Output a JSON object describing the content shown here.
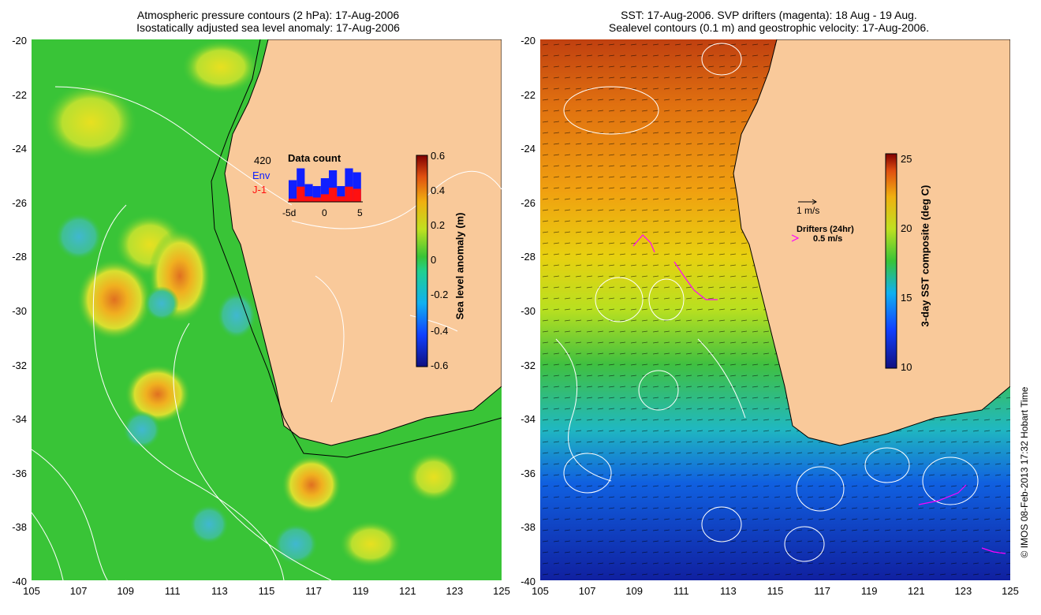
{
  "left_panel": {
    "title_line1": "Atmospheric pressure contours (2 hPa): 17-Aug-2006",
    "title_line2": "Isostatically adjusted sea level anomaly: 17-Aug-2006",
    "lat_ticks": [
      "-20",
      "-22",
      "-24",
      "-26",
      "-28",
      "-30",
      "-32",
      "-34",
      "-36",
      "-38",
      "-40"
    ],
    "lon_ticks": [
      "105",
      "107",
      "109",
      "111",
      "113",
      "115",
      "117",
      "119",
      "121",
      "123",
      "125"
    ],
    "colorbar_label": "Sea level anomaly (m)",
    "colorbar_ticks": [
      "0.6",
      "0.4",
      "0.2",
      "0",
      "-0.2",
      "-0.4",
      "-0.6"
    ],
    "inset": {
      "title": "Data count",
      "count": "420",
      "series1": "Env",
      "series2": "J-1",
      "x_ticks": [
        "-5d",
        "0",
        "5"
      ],
      "env_heights": [
        0.55,
        0.85,
        0.45,
        0.4,
        0.6,
        0.8,
        0.4,
        0.85,
        0.75
      ],
      "j1_heights": [
        0.15,
        0.7,
        0.25,
        0.2,
        0.35,
        0.65,
        0.25,
        0.7,
        0.6
      ]
    },
    "colors": {
      "land": "#f9c99a",
      "ocean": "#39c437",
      "env": "#1020ff",
      "j1": "#ff1010"
    }
  },
  "right_panel": {
    "title_line1": "SST: 17-Aug-2006. SVP drifters (magenta): 18 Aug - 19 Aug.",
    "title_line2": "Sealevel contours (0.1 m) and geostrophic velocity: 17-Aug-2006.",
    "lat_ticks": [
      "-20",
      "-22",
      "-24",
      "-26",
      "-28",
      "-30",
      "-32",
      "-34",
      "-36",
      "-38",
      "-40"
    ],
    "lon_ticks": [
      "105",
      "107",
      "109",
      "111",
      "113",
      "115",
      "117",
      "119",
      "121",
      "123",
      "125"
    ],
    "colorbar_label": "3-day SST composite (deg C)",
    "colorbar_ticks": [
      "25",
      "20",
      "15",
      "10"
    ],
    "velocity_scale": "1 m/s",
    "drifters_label": "Drifters (24hr)",
    "drifters_scale": "0.5 m/s",
    "colors": {
      "land": "#f9c99a",
      "drifter": "#ff00ff"
    }
  },
  "credit": "© IMOS 08-Feb-2013 17:32 Hobart Time"
}
